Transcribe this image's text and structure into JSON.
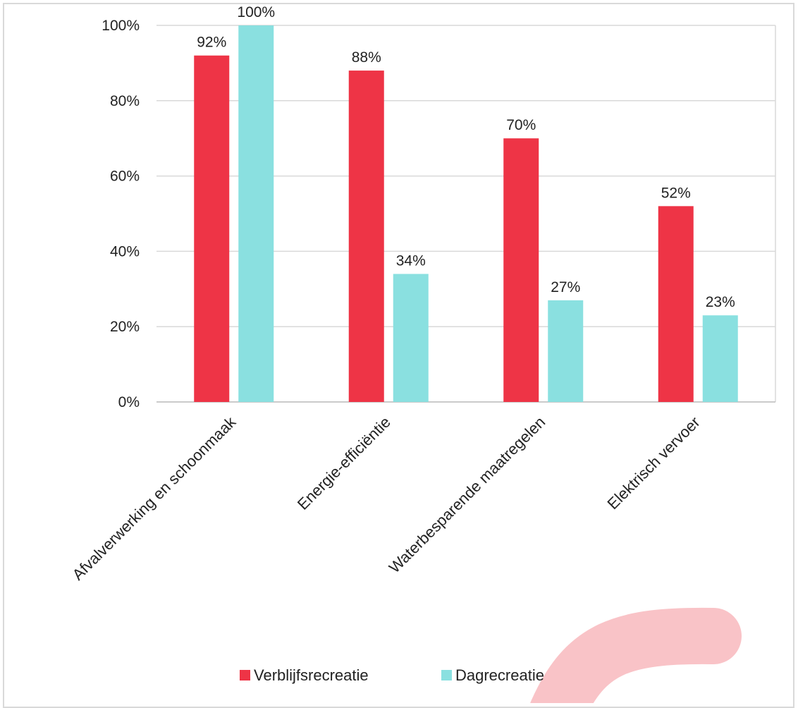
{
  "chart_data": {
    "type": "bar",
    "categories": [
      "Afvalverwerking en schoonmaak",
      "Energie-efficiëntie",
      "Waterbesparende maatregelen",
      "Elektrisch vervoer"
    ],
    "series": [
      {
        "name": "Verblijfsrecreatie",
        "values": [
          92,
          88,
          70,
          52
        ],
        "labels": [
          "92%",
          "88%",
          "70%",
          "52%"
        ],
        "color": "#ee3446"
      },
      {
        "name": "Dagrecreatie",
        "values": [
          100,
          34,
          27,
          23
        ],
        "labels": [
          "100%",
          "34%",
          "27%",
          "23%"
        ],
        "color": "#8ae0e0"
      }
    ],
    "ylim": [
      0,
      100
    ],
    "yticks": [
      0,
      20,
      40,
      60,
      80,
      100
    ],
    "ytick_labels": [
      "0%",
      "20%",
      "40%",
      "60%",
      "80%",
      "100%"
    ],
    "grid": true,
    "legend_position": "bottom",
    "title": "",
    "xlabel": "",
    "ylabel": ""
  },
  "decoration": {
    "arc_color": "#f9c3c7"
  }
}
